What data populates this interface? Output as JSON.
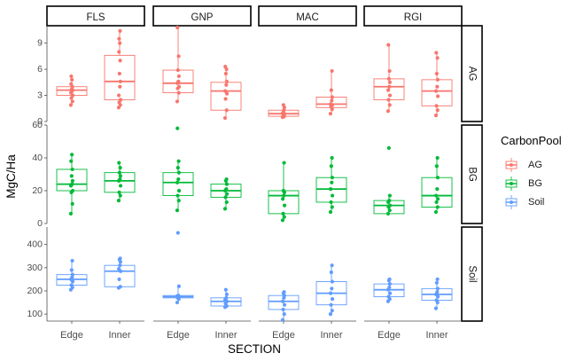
{
  "chart_data": {
    "type": "boxplot",
    "xlabel": "SECTION",
    "ylabel": "MgC/Ha",
    "columns": [
      "FLS",
      "GNP",
      "MAC",
      "RGI"
    ],
    "rows": [
      "AG",
      "BG",
      "Soil"
    ],
    "categories": [
      "Edge",
      "Inner"
    ],
    "legend": {
      "title": "CarbonPool",
      "position": "right",
      "items": [
        "AG",
        "BG",
        "Soil"
      ]
    },
    "colors": {
      "AG": "#F8766D",
      "BG": "#00BA38",
      "Soil": "#619CFF"
    },
    "y_axes": {
      "AG": {
        "ylim": [
          0,
          11
        ],
        "ticks": [
          0,
          3,
          6,
          9
        ]
      },
      "BG": {
        "ylim": [
          0,
          60
        ],
        "ticks": [
          0,
          20,
          40,
          60
        ]
      },
      "Soil": {
        "ylim": [
          70,
          475
        ],
        "ticks": [
          100,
          200,
          300,
          400
        ]
      }
    },
    "panels": {
      "AG": {
        "FLS": {
          "Edge": {
            "q1": 3.0,
            "median": 3.6,
            "q3": 4.0,
            "whisker_low": 1.9,
            "whisker_high": 5.2,
            "points": [
              1.9,
              2.3,
              2.7,
              3.0,
              3.3,
              3.5,
              3.6,
              3.7,
              4.0,
              4.3,
              4.8,
              5.2
            ]
          },
          "Inner": {
            "q1": 2.5,
            "median": 4.6,
            "q3": 7.6,
            "whisker_low": 1.6,
            "whisker_high": 10.4,
            "points": [
              1.6,
              1.9,
              2.2,
              2.5,
              3.0,
              4.0,
              4.6,
              5.5,
              7.0,
              8.0,
              9.0,
              9.5,
              10.4
            ]
          }
        },
        "GNP": {
          "Edge": {
            "q1": 3.3,
            "median": 4.4,
            "q3": 5.9,
            "whisker_low": 2.3,
            "whisker_high": 10.8,
            "points": [
              2.3,
              3.3,
              3.8,
              4.0,
              4.4,
              4.6,
              5.2,
              5.9,
              7.5,
              10.8
            ]
          },
          "Inner": {
            "q1": 1.3,
            "median": 3.5,
            "q3": 4.5,
            "whisker_low": 0.4,
            "whisker_high": 6.3,
            "points": [
              0.4,
              1.3,
              2.6,
              3.2,
              3.5,
              4.2,
              4.6,
              5.5,
              6.0,
              6.3
            ]
          }
        },
        "MAC": {
          "Edge": {
            "q1": 0.6,
            "median": 0.9,
            "q3": 1.3,
            "whisker_low": 0.5,
            "whisker_high": 1.9,
            "points": [
              0.5,
              0.6,
              0.8,
              0.9,
              1.0,
              1.3,
              1.6,
              1.9
            ]
          },
          "Inner": {
            "q1": 1.6,
            "median": 2.0,
            "q3": 2.8,
            "whisker_low": 0.9,
            "whisker_high": 5.8,
            "points": [
              0.9,
              1.4,
              1.7,
              1.9,
              2.0,
              2.4,
              2.8,
              3.6,
              5.8
            ]
          }
        },
        "RGI": {
          "Edge": {
            "q1": 2.5,
            "median": 4.0,
            "q3": 4.9,
            "whisker_low": 1.2,
            "whisker_high": 8.8,
            "points": [
              1.2,
              1.9,
              2.5,
              3.0,
              3.6,
              4.0,
              4.5,
              4.9,
              5.8,
              8.8
            ]
          },
          "Inner": {
            "q1": 1.8,
            "median": 3.5,
            "q3": 4.8,
            "whisker_low": 0.7,
            "whisker_high": 7.9,
            "points": [
              0.7,
              1.3,
              1.8,
              2.9,
              3.5,
              4.0,
              4.8,
              5.5,
              7.3,
              7.9
            ]
          }
        }
      },
      "BG": {
        "FLS": {
          "Edge": {
            "q1": 20,
            "median": 24,
            "q3": 33,
            "whisker_low": 6,
            "whisker_high": 42,
            "points": [
              6,
              12,
              19,
              20,
              23,
              24,
              26,
              29,
              33,
              38,
              42
            ]
          },
          "Inner": {
            "q1": 19,
            "median": 26,
            "q3": 31,
            "whisker_low": 14,
            "whisker_high": 37,
            "points": [
              14,
              17,
              19,
              23,
              26,
              27,
              29,
              31,
              34,
              37
            ]
          }
        },
        "GNP": {
          "Edge": {
            "q1": 17,
            "median": 25,
            "q3": 31,
            "whisker_low": 8,
            "whisker_high": 38,
            "points": [
              8,
              14,
              17,
              20,
              25,
              27,
              31,
              34,
              38,
              58
            ]
          },
          "Inner": {
            "q1": 16,
            "median": 20,
            "q3": 24,
            "whisker_low": 9,
            "whisker_high": 27,
            "points": [
              9,
              13,
              16,
              18,
              20,
              21,
              24,
              26,
              27
            ]
          }
        },
        "MAC": {
          "Edge": {
            "q1": 6,
            "median": 17,
            "q3": 20,
            "whisker_low": 2,
            "whisker_high": 37,
            "points": [
              2,
              4,
              6,
              11,
              15,
              17,
              19,
              20,
              37
            ]
          },
          "Inner": {
            "q1": 13,
            "median": 21,
            "q3": 28,
            "whisker_low": 7,
            "whisker_high": 40,
            "points": [
              7,
              10,
              13,
              17,
              21,
              25,
              28,
              35,
              40
            ]
          }
        },
        "RGI": {
          "Edge": {
            "q1": 6,
            "median": 11,
            "q3": 14,
            "whisker_low": 6,
            "whisker_high": 17,
            "points": [
              6,
              8,
              10,
              11,
              13,
              14,
              17,
              46
            ]
          },
          "Inner": {
            "q1": 10,
            "median": 17,
            "q3": 28,
            "whisker_low": 7,
            "whisker_high": 40,
            "points": [
              7,
              10,
              13,
              15,
              17,
              21,
              28,
              35,
              40
            ]
          }
        }
      },
      "Soil": {
        "FLS": {
          "Edge": {
            "q1": 225,
            "median": 250,
            "q3": 270,
            "whisker_low": 205,
            "whisker_high": 330,
            "points": [
              205,
              215,
              225,
              240,
              250,
              258,
              270,
              290,
              330
            ]
          },
          "Inner": {
            "q1": 218,
            "median": 285,
            "q3": 310,
            "whisker_low": 213,
            "whisker_high": 340,
            "points": [
              213,
              218,
              250,
              285,
              295,
              310,
              325,
              335,
              340
            ]
          }
        },
        "GNP": {
          "Edge": {
            "q1": 170,
            "median": 175,
            "q3": 180,
            "whisker_low": 150,
            "whisker_high": 220,
            "points": [
              150,
              165,
              170,
              175,
              178,
              180,
              220,
              450
            ]
          },
          "Inner": {
            "q1": 135,
            "median": 155,
            "q3": 170,
            "whisker_low": 130,
            "whisker_high": 205,
            "points": [
              130,
              135,
              145,
              155,
              162,
              170,
              185,
              205
            ]
          }
        },
        "MAC": {
          "Edge": {
            "q1": 120,
            "median": 155,
            "q3": 180,
            "whisker_low": 75,
            "whisker_high": 195,
            "points": [
              75,
              100,
              120,
              140,
              155,
              170,
              180,
              190,
              195
            ]
          },
          "Inner": {
            "q1": 140,
            "median": 190,
            "q3": 240,
            "whisker_low": 100,
            "whisker_high": 310,
            "points": [
              100,
              115,
              140,
              165,
              190,
              210,
              240,
              280,
              310
            ]
          }
        },
        "RGI": {
          "Edge": {
            "q1": 175,
            "median": 205,
            "q3": 230,
            "whisker_low": 155,
            "whisker_high": 250,
            "points": [
              155,
              165,
              175,
              190,
              205,
              215,
              230,
              245,
              250
            ]
          },
          "Inner": {
            "q1": 160,
            "median": 185,
            "q3": 210,
            "whisker_low": 125,
            "whisker_high": 250,
            "points": [
              125,
              150,
              160,
              175,
              185,
              195,
              210,
              235,
              250
            ]
          }
        }
      }
    }
  }
}
